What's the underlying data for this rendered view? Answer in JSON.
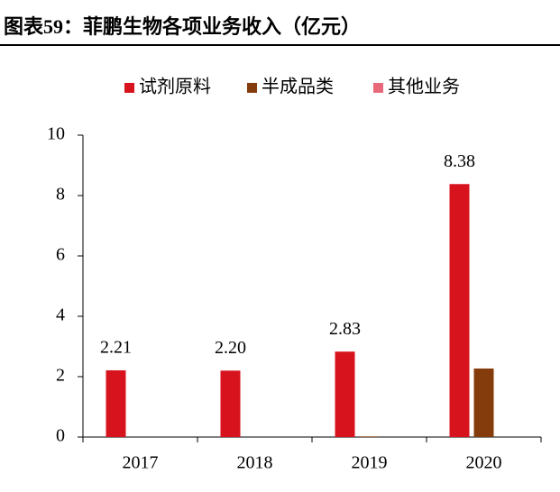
{
  "chart_data": {
    "type": "bar",
    "title": "图表59：菲鹏生物各项业务收入（亿元）",
    "categories": [
      "2017",
      "2018",
      "2019",
      "2020"
    ],
    "series": [
      {
        "name": "试剂原料",
        "color": "#d7141e",
        "values": [
          2.21,
          2.2,
          2.83,
          8.38
        ],
        "value_labels": [
          "2.21",
          "2.20",
          "2.83",
          "8.38"
        ]
      },
      {
        "name": "半成品类",
        "color": "#843c0c",
        "values": [
          0,
          0,
          0.02,
          2.27
        ]
      },
      {
        "name": "其他业务",
        "color": "#e8697a",
        "values": [
          0,
          0,
          0,
          0
        ]
      }
    ],
    "ylim": [
      0,
      10
    ],
    "yticks": [
      0,
      2,
      4,
      6,
      8,
      10
    ],
    "grid": false,
    "legend": "top"
  }
}
